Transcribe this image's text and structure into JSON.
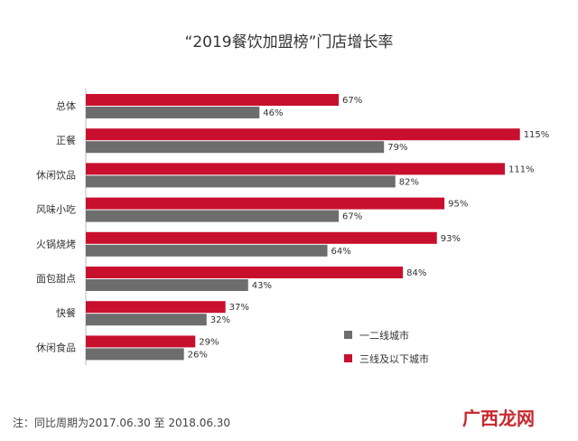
{
  "chart_data": {
    "type": "bar",
    "orientation": "horizontal",
    "title": "“2019餐饮加盟榜”门店增长率",
    "categories": [
      "总体",
      "正餐",
      "休闲饮品",
      "风味小吃",
      "火锅烧烤",
      "面包甜点",
      "快餐",
      "休闲食品"
    ],
    "series": [
      {
        "name": "三线及以下城市",
        "color": "#c8102e",
        "values": [
          67,
          115,
          111,
          95,
          93,
          84,
          37,
          29
        ],
        "labels": [
          "67%",
          "115%",
          "111%",
          "95%",
          "93%",
          "84%",
          "37%",
          "29%"
        ]
      },
      {
        "name": "一二线城市",
        "color": "#6d6d6d",
        "values": [
          46,
          79,
          82,
          67,
          64,
          43,
          32,
          26
        ],
        "labels": [
          "46%",
          "79%",
          "82%",
          "67%",
          "64%",
          "43%",
          "32%",
          "26%"
        ]
      }
    ],
    "xlim": [
      0,
      120
    ],
    "grid": false,
    "legend_position": "bottom-right",
    "legend": [
      {
        "name": "一二线城市",
        "color": "#6d6d6d"
      },
      {
        "name": "三线及以下城市",
        "color": "#c8102e"
      }
    ]
  },
  "note": "注：同比周期为2017.06.30 至 2018.06.30",
  "watermark": "广西龙网"
}
